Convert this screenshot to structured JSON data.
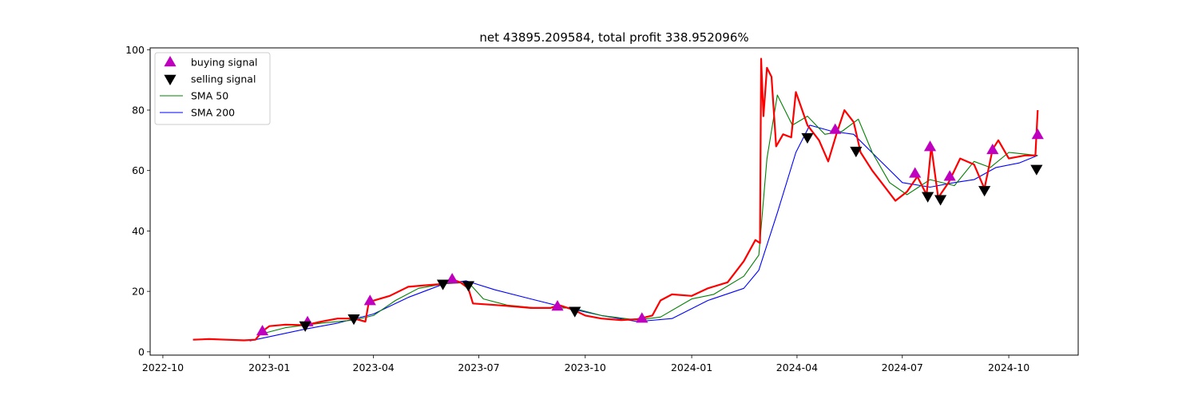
{
  "chart_data": {
    "type": "line",
    "title": "net 43895.209584, total profit 338.952096%",
    "xlabel": "",
    "ylabel": "",
    "x_domain": [
      "2022-09-20",
      "2024-11-30"
    ],
    "ylim": [
      -1.1,
      100.6
    ],
    "x_ticks": [
      {
        "date": "2022-10-01",
        "label": "2022-10"
      },
      {
        "date": "2023-01-01",
        "label": "2023-01"
      },
      {
        "date": "2023-04-01",
        "label": "2023-04"
      },
      {
        "date": "2023-07-01",
        "label": "2023-07"
      },
      {
        "date": "2023-10-01",
        "label": "2023-10"
      },
      {
        "date": "2024-01-01",
        "label": "2024-01"
      },
      {
        "date": "2024-04-01",
        "label": "2024-04"
      },
      {
        "date": "2024-07-01",
        "label": "2024-07"
      },
      {
        "date": "2024-10-01",
        "label": "2024-10"
      }
    ],
    "y_ticks": [
      {
        "value": 0,
        "label": "0"
      },
      {
        "value": 20,
        "label": "20"
      },
      {
        "value": 40,
        "label": "40"
      },
      {
        "value": 60,
        "label": "60"
      },
      {
        "value": 80,
        "label": "80"
      },
      {
        "value": 100,
        "label": "100"
      }
    ],
    "grid": false,
    "legend_position": "top-left",
    "colors": {
      "close": "#ff0000",
      "sma50": "#008000",
      "sma200": "#0000ff",
      "buy": "#bf00bf",
      "sell": "#000000"
    },
    "legend": [
      {
        "label": "buying signal",
        "kind": "buy"
      },
      {
        "label": "selling signal",
        "kind": "sell"
      },
      {
        "label": "SMA 50",
        "kind": "sma50"
      },
      {
        "label": "SMA 200",
        "kind": "sma200"
      }
    ],
    "series": [
      {
        "key": "close",
        "points": [
          [
            "2022-10-27",
            4.0
          ],
          [
            "2022-11-10",
            4.2
          ],
          [
            "2022-11-25",
            4.0
          ],
          [
            "2022-12-10",
            3.8
          ],
          [
            "2022-12-20",
            4.0
          ],
          [
            "2022-12-26",
            6.8
          ],
          [
            "2023-01-01",
            8.5
          ],
          [
            "2023-01-15",
            9.0
          ],
          [
            "2023-02-01",
            8.8
          ],
          [
            "2023-02-15",
            10.0
          ],
          [
            "2023-03-01",
            11.0
          ],
          [
            "2023-03-15",
            11.0
          ],
          [
            "2023-03-25",
            10.0
          ],
          [
            "2023-03-28",
            16.5
          ],
          [
            "2023-04-15",
            18.5
          ],
          [
            "2023-05-01",
            21.5
          ],
          [
            "2023-05-15",
            22.0
          ],
          [
            "2023-06-01",
            22.5
          ],
          [
            "2023-06-08",
            24.0
          ],
          [
            "2023-06-15",
            23.0
          ],
          [
            "2023-06-22",
            21.0
          ],
          [
            "2023-06-26",
            16.0
          ],
          [
            "2023-07-15",
            15.5
          ],
          [
            "2023-08-01",
            15.0
          ],
          [
            "2023-08-15",
            14.5
          ],
          [
            "2023-09-01",
            14.5
          ],
          [
            "2023-09-08",
            15.5
          ],
          [
            "2023-09-20",
            14.0
          ],
          [
            "2023-10-01",
            12.0
          ],
          [
            "2023-10-15",
            11.0
          ],
          [
            "2023-11-01",
            10.5
          ],
          [
            "2023-11-15",
            10.8
          ],
          [
            "2023-11-28",
            12.0
          ],
          [
            "2023-12-05",
            17.0
          ],
          [
            "2023-12-15",
            19.0
          ],
          [
            "2024-01-01",
            18.5
          ],
          [
            "2024-01-15",
            21.0
          ],
          [
            "2024-02-01",
            23.0
          ],
          [
            "2024-02-15",
            30.0
          ],
          [
            "2024-02-25",
            37.0
          ],
          [
            "2024-02-29",
            36.0
          ],
          [
            "2024-03-01",
            97.0
          ],
          [
            "2024-03-03",
            78.0
          ],
          [
            "2024-03-06",
            94.0
          ],
          [
            "2024-03-10",
            91.0
          ],
          [
            "2024-03-14",
            68.0
          ],
          [
            "2024-03-20",
            72.0
          ],
          [
            "2024-03-27",
            71.0
          ],
          [
            "2024-03-31",
            86.0
          ],
          [
            "2024-04-10",
            75.0
          ],
          [
            "2024-04-20",
            70.0
          ],
          [
            "2024-04-28",
            63.0
          ],
          [
            "2024-05-05",
            72.0
          ],
          [
            "2024-05-12",
            80.0
          ],
          [
            "2024-05-20",
            76.0
          ],
          [
            "2024-05-26",
            66.0
          ],
          [
            "2024-06-05",
            60.0
          ],
          [
            "2024-06-15",
            55.0
          ],
          [
            "2024-06-25",
            50.0
          ],
          [
            "2024-07-05",
            53.0
          ],
          [
            "2024-07-14",
            58.0
          ],
          [
            "2024-07-22",
            52.0
          ],
          [
            "2024-07-26",
            68.0
          ],
          [
            "2024-08-01",
            51.0
          ],
          [
            "2024-08-10",
            56.0
          ],
          [
            "2024-08-20",
            64.0
          ],
          [
            "2024-09-01",
            62.0
          ],
          [
            "2024-09-10",
            54.0
          ],
          [
            "2024-09-17",
            67.0
          ],
          [
            "2024-09-22",
            70.0
          ],
          [
            "2024-10-01",
            64.0
          ],
          [
            "2024-10-15",
            65.0
          ],
          [
            "2024-10-24",
            65.0
          ],
          [
            "2024-10-26",
            80.0
          ]
        ]
      },
      {
        "key": "sma50",
        "points": [
          [
            "2022-12-26",
            6.0
          ],
          [
            "2023-01-15",
            8.0
          ],
          [
            "2023-02-15",
            9.5
          ],
          [
            "2023-03-15",
            10.5
          ],
          [
            "2023-04-01",
            12.0
          ],
          [
            "2023-04-20",
            17.0
          ],
          [
            "2023-05-10",
            21.0
          ],
          [
            "2023-06-01",
            22.5
          ],
          [
            "2023-06-22",
            23.0
          ],
          [
            "2023-07-05",
            17.5
          ],
          [
            "2023-07-25",
            15.5
          ],
          [
            "2023-08-20",
            14.5
          ],
          [
            "2023-09-20",
            14.5
          ],
          [
            "2023-10-15",
            12.0
          ],
          [
            "2023-11-15",
            10.5
          ],
          [
            "2023-12-05",
            11.5
          ],
          [
            "2024-01-01",
            17.5
          ],
          [
            "2024-01-20",
            19.0
          ],
          [
            "2024-02-15",
            25.0
          ],
          [
            "2024-02-28",
            32.0
          ],
          [
            "2024-03-06",
            64.0
          ],
          [
            "2024-03-15",
            85.0
          ],
          [
            "2024-03-28",
            75.0
          ],
          [
            "2024-04-10",
            78.0
          ],
          [
            "2024-04-25",
            72.0
          ],
          [
            "2024-05-10",
            73.0
          ],
          [
            "2024-05-24",
            77.0
          ],
          [
            "2024-06-05",
            66.0
          ],
          [
            "2024-06-20",
            56.0
          ],
          [
            "2024-07-05",
            52.0
          ],
          [
            "2024-07-25",
            57.0
          ],
          [
            "2024-08-15",
            55.0
          ],
          [
            "2024-09-01",
            63.0
          ],
          [
            "2024-09-15",
            61.0
          ],
          [
            "2024-10-01",
            66.0
          ],
          [
            "2024-10-26",
            65.0
          ]
        ]
      },
      {
        "key": "sma200",
        "points": [
          [
            "2022-12-15",
            3.6
          ],
          [
            "2023-01-01",
            5.0
          ],
          [
            "2023-02-01",
            7.5
          ],
          [
            "2023-03-01",
            9.5
          ],
          [
            "2023-04-01",
            12.5
          ],
          [
            "2023-05-01",
            18.0
          ],
          [
            "2023-06-01",
            22.5
          ],
          [
            "2023-06-20",
            23.5
          ],
          [
            "2023-07-15",
            20.5
          ],
          [
            "2023-08-15",
            17.5
          ],
          [
            "2023-09-15",
            14.5
          ],
          [
            "2023-10-15",
            12.0
          ],
          [
            "2023-11-15",
            10.0
          ],
          [
            "2023-12-15",
            11.0
          ],
          [
            "2024-01-15",
            17.0
          ],
          [
            "2024-02-15",
            21.0
          ],
          [
            "2024-02-28",
            27.0
          ],
          [
            "2024-03-15",
            46.0
          ],
          [
            "2024-03-31",
            66.0
          ],
          [
            "2024-04-12",
            75.0
          ],
          [
            "2024-05-01",
            73.0
          ],
          [
            "2024-05-20",
            72.0
          ],
          [
            "2024-06-10",
            64.0
          ],
          [
            "2024-07-01",
            56.0
          ],
          [
            "2024-07-25",
            54.5
          ],
          [
            "2024-08-15",
            56.0
          ],
          [
            "2024-09-01",
            57.0
          ],
          [
            "2024-09-20",
            61.0
          ],
          [
            "2024-10-10",
            62.5
          ],
          [
            "2024-10-26",
            65.0
          ]
        ]
      }
    ],
    "buy_signals": [
      [
        "2022-12-26",
        6.8
      ],
      [
        "2023-02-03",
        9.8
      ],
      [
        "2023-03-29",
        16.8
      ],
      [
        "2023-06-08",
        24.0
      ],
      [
        "2023-09-07",
        15.0
      ],
      [
        "2023-11-19",
        11.0
      ],
      [
        "2024-05-04",
        73.5
      ],
      [
        "2024-07-12",
        59.0
      ],
      [
        "2024-07-25",
        67.8
      ],
      [
        "2024-08-11",
        58.0
      ],
      [
        "2024-09-17",
        66.8
      ],
      [
        "2024-10-26",
        71.8
      ]
    ],
    "sell_signals": [
      [
        "2023-02-01",
        8.7
      ],
      [
        "2023-03-15",
        11.0
      ],
      [
        "2023-05-31",
        22.5
      ],
      [
        "2023-06-22",
        22.0
      ],
      [
        "2023-09-22",
        13.5
      ],
      [
        "2024-04-10",
        71.0
      ],
      [
        "2024-05-22",
        66.5
      ],
      [
        "2024-07-23",
        51.5
      ],
      [
        "2024-08-03",
        50.5
      ],
      [
        "2024-09-10",
        53.5
      ],
      [
        "2024-10-25",
        60.5
      ]
    ]
  }
}
